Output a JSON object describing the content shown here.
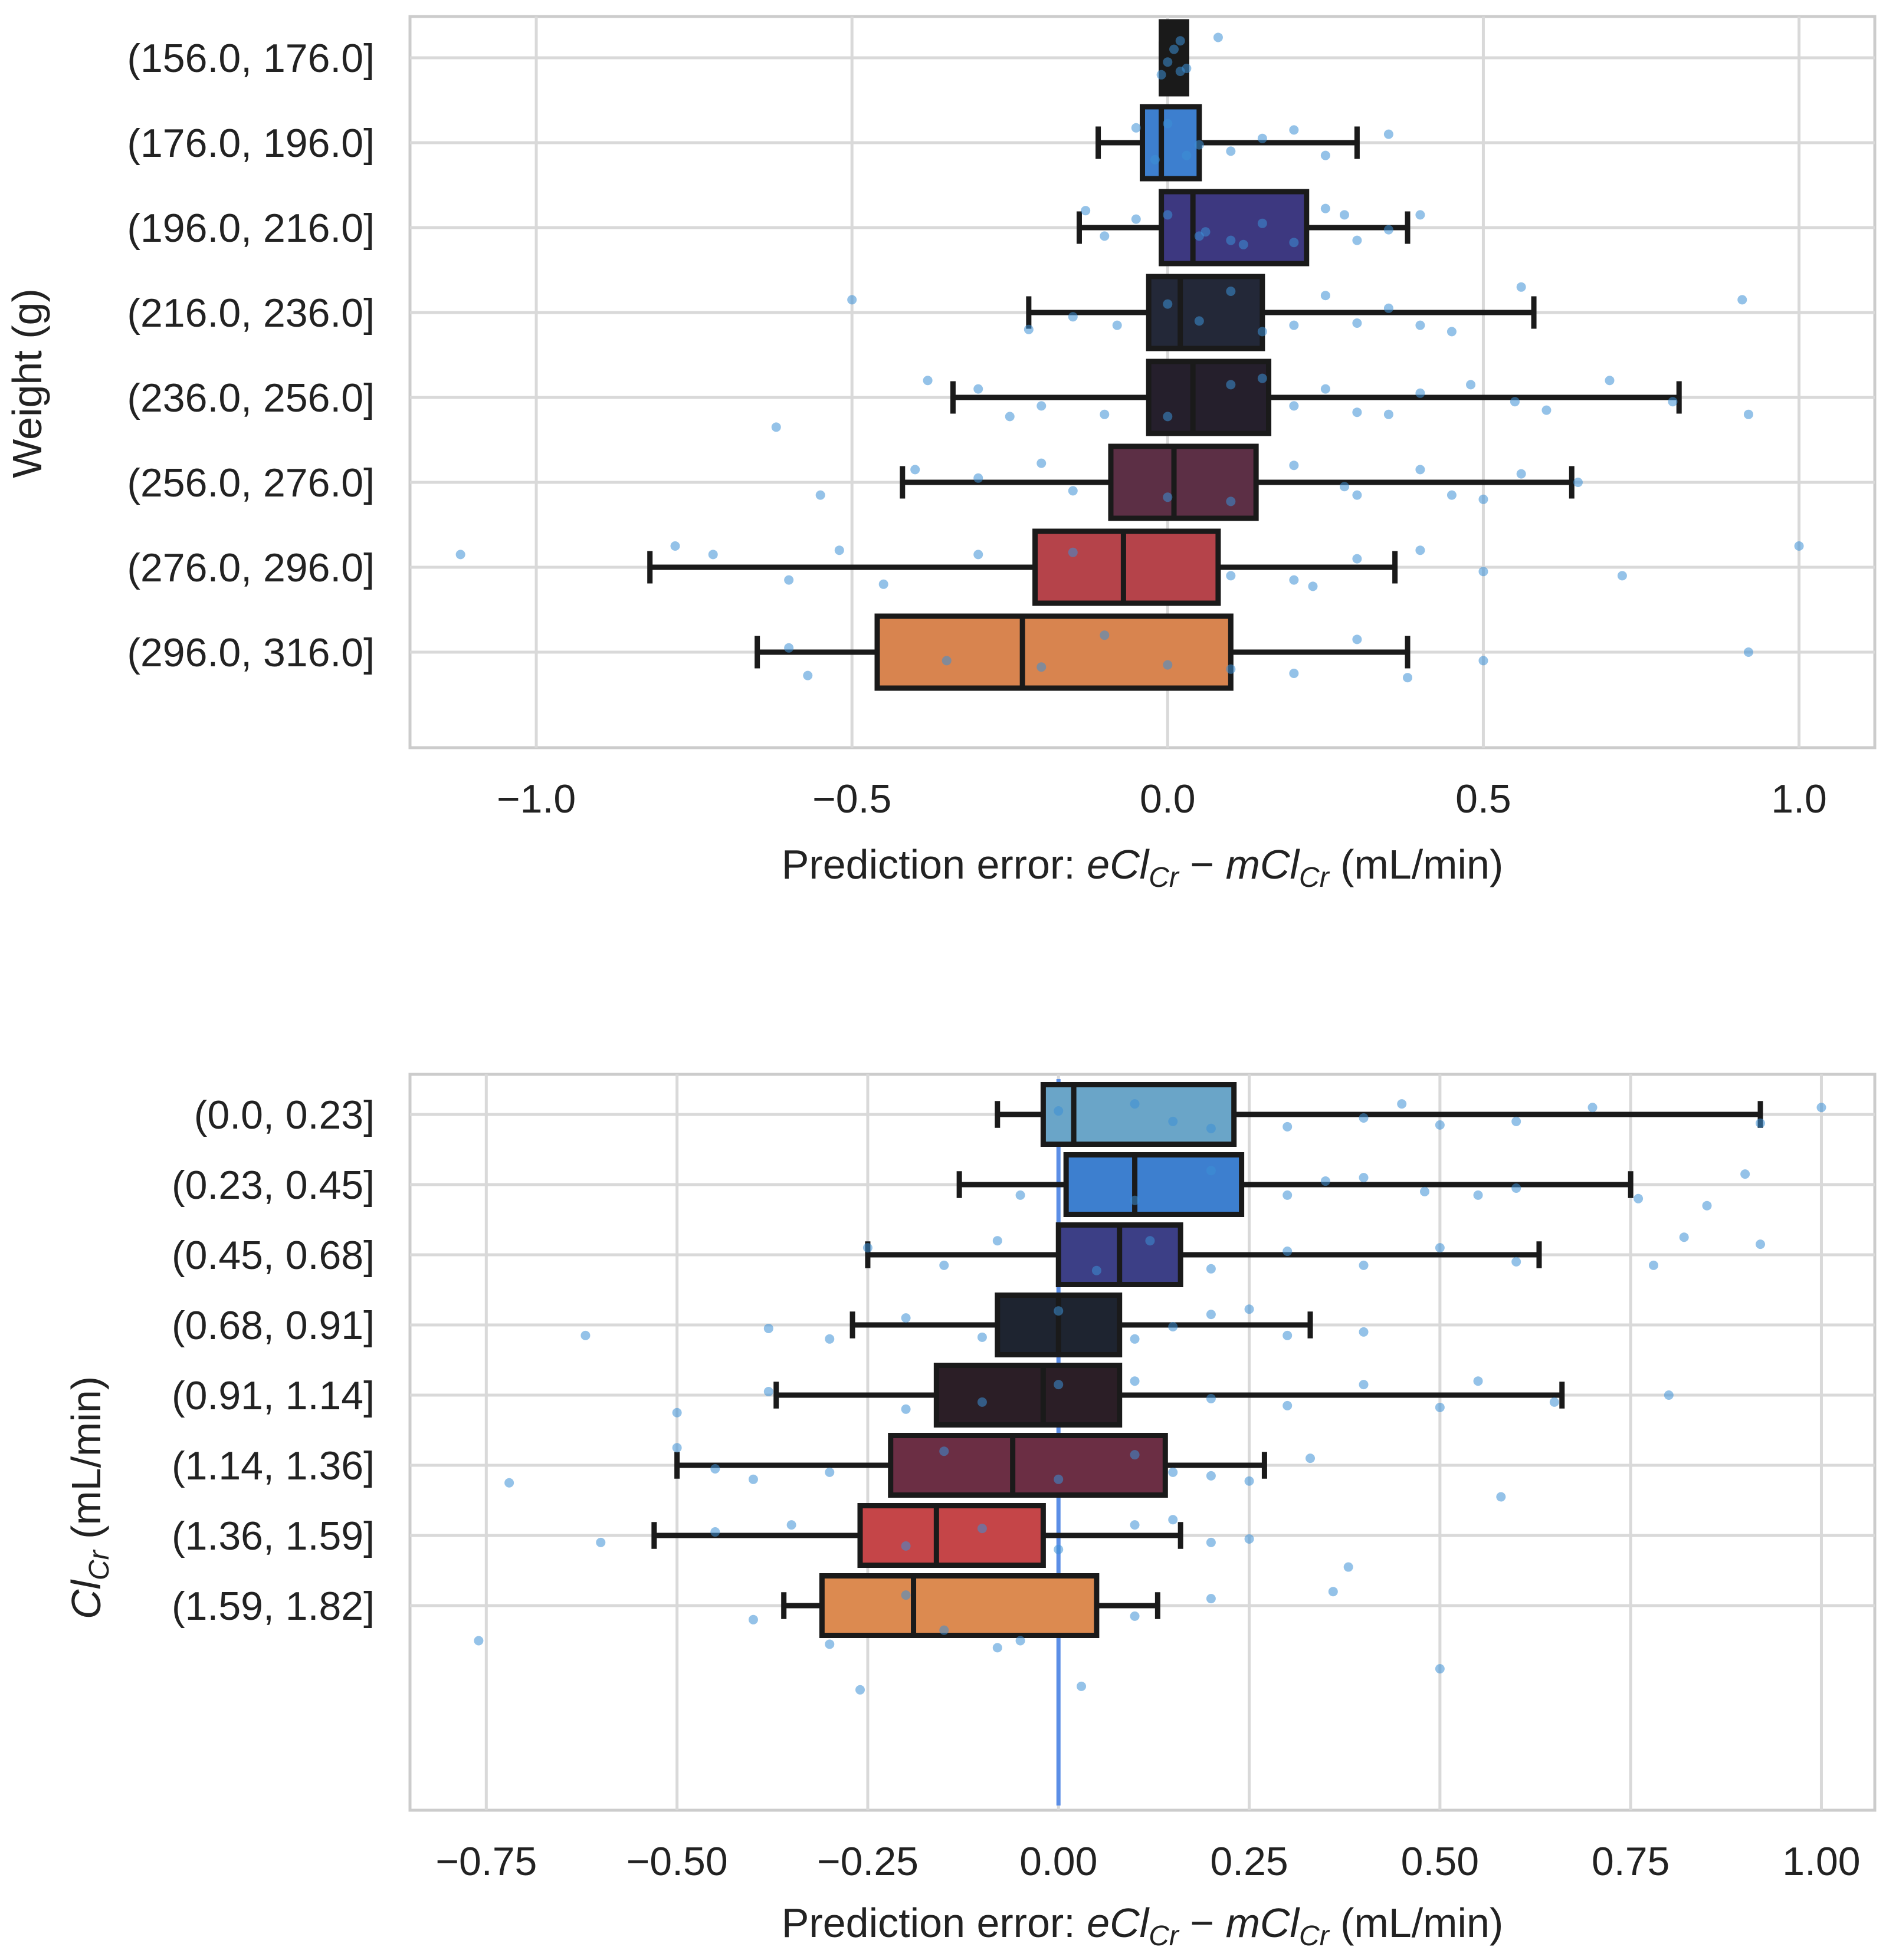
{
  "chart_data": [
    {
      "type": "boxplot",
      "orientation": "horizontal",
      "ylabel": "Weight (g)",
      "xlabel": {
        "prefix": "Prediction error: ",
        "term1": "eCl",
        "sub1": "Cr",
        "operator": " − ",
        "term2": "mCl",
        "sub2": "Cr",
        "suffix": " (mL/min)"
      },
      "xlim": [
        -1.2,
        1.12
      ],
      "xticks": [
        -1.0,
        -0.5,
        0.0,
        0.5,
        1.0
      ],
      "xtick_labels": [
        "−1.0",
        "−0.5",
        "0.0",
        "0.5",
        "1.0"
      ],
      "grid": true,
      "zero_line": false,
      "categories": [
        "(156.0, 176.0]",
        "(176.0, 196.0]",
        "(196.0, 216.0]",
        "(216.0, 236.0]",
        "(236.0, 256.0]",
        "(256.0, 276.0]",
        "(276.0, 296.0]",
        "(296.0, 316.0]"
      ],
      "colors": [
        "#1a1a1a",
        "#3d7fcf",
        "#3d3880",
        "#232838",
        "#251f2c",
        "#5c2f45",
        "#b5434a",
        "#d8844f"
      ],
      "boxes": [
        {
          "whislo": -0.01,
          "q1": -0.01,
          "med": 0.01,
          "q3": 0.03,
          "whishi": 0.03
        },
        {
          "whislo": -0.11,
          "q1": -0.04,
          "med": -0.01,
          "q3": 0.05,
          "whishi": 0.3
        },
        {
          "whislo": -0.14,
          "q1": -0.01,
          "med": 0.04,
          "q3": 0.22,
          "whishi": 0.38
        },
        {
          "whislo": -0.22,
          "q1": -0.03,
          "med": 0.02,
          "q3": 0.15,
          "whishi": 0.58
        },
        {
          "whislo": -0.34,
          "q1": -0.03,
          "med": 0.04,
          "q3": 0.16,
          "whishi": 0.81
        },
        {
          "whislo": -0.42,
          "q1": -0.09,
          "med": 0.01,
          "q3": 0.14,
          "whishi": 0.64
        },
        {
          "whislo": -0.82,
          "q1": -0.21,
          "med": -0.07,
          "q3": 0.08,
          "whishi": 0.36
        },
        {
          "whislo": -0.65,
          "q1": -0.46,
          "med": -0.23,
          "q3": 0.1,
          "whishi": 0.38
        }
      ],
      "scatter": [
        [
          [
            0.01,
            -0.2
          ],
          [
            0.03,
            0.25
          ],
          [
            -0.01,
            0.4
          ],
          [
            0.02,
            -0.4
          ],
          [
            0.08,
            -0.48
          ],
          [
            0.0,
            0.1
          ],
          [
            0.02,
            0.32
          ]
        ],
        [
          [
            -0.05,
            -0.35
          ],
          [
            0.1,
            0.2
          ],
          [
            0.03,
            0.3
          ],
          [
            0.2,
            -0.3
          ],
          [
            -0.02,
            0.4
          ],
          [
            0.15,
            -0.1
          ],
          [
            0.05,
            0.05
          ],
          [
            0.35,
            -0.2
          ],
          [
            0.0,
            -0.45
          ],
          [
            0.25,
            0.3
          ]
        ],
        [
          [
            -0.13,
            -0.4
          ],
          [
            0.3,
            0.3
          ],
          [
            0.4,
            -0.3
          ],
          [
            0.1,
            0.3
          ],
          [
            -0.05,
            -0.2
          ],
          [
            0.2,
            0.35
          ],
          [
            0.05,
            0.2
          ],
          [
            0.28,
            -0.3
          ],
          [
            0.15,
            -0.1
          ],
          [
            -0.1,
            0.2
          ],
          [
            0.35,
            0.05
          ],
          [
            0.12,
            0.4
          ],
          [
            0.25,
            -0.45
          ],
          [
            0.0,
            -0.3
          ],
          [
            0.06,
            0.1
          ]
        ],
        [
          [
            -0.5,
            -0.3
          ],
          [
            -0.22,
            0.4
          ],
          [
            0.2,
            0.3
          ],
          [
            0.56,
            -0.6
          ],
          [
            0.91,
            -0.3
          ],
          [
            0.4,
            0.3
          ],
          [
            0.1,
            -0.5
          ],
          [
            -0.15,
            0.1
          ],
          [
            0.3,
            0.25
          ],
          [
            0.0,
            -0.2
          ],
          [
            0.25,
            -0.4
          ],
          [
            0.45,
            0.45
          ],
          [
            -0.08,
            0.3
          ],
          [
            0.15,
            0.45
          ],
          [
            0.35,
            -0.1
          ],
          [
            0.05,
            0.2
          ]
        ],
        [
          [
            -0.62,
            0.7
          ],
          [
            -0.38,
            -0.4
          ],
          [
            0.92,
            0.4
          ],
          [
            0.48,
            -0.3
          ],
          [
            0.7,
            -0.4
          ],
          [
            0.8,
            0.1
          ],
          [
            0.3,
            0.35
          ],
          [
            0.6,
            0.3
          ],
          [
            -0.2,
            0.2
          ],
          [
            0.1,
            -0.3
          ],
          [
            -0.3,
            -0.2
          ],
          [
            0.2,
            0.2
          ],
          [
            0.4,
            -0.1
          ],
          [
            -0.1,
            0.4
          ],
          [
            0.15,
            -0.45
          ],
          [
            0.55,
            0.1
          ],
          [
            0.25,
            -0.2
          ],
          [
            0.0,
            0.45
          ],
          [
            0.35,
            0.4
          ],
          [
            -0.25,
            0.45
          ]
        ],
        [
          [
            -0.55,
            0.3
          ],
          [
            -0.4,
            -0.3
          ],
          [
            0.5,
            0.4
          ],
          [
            0.56,
            -0.2
          ],
          [
            0.3,
            0.3
          ],
          [
            -0.15,
            0.2
          ],
          [
            0.2,
            -0.4
          ],
          [
            0.65,
            0.0
          ],
          [
            0.4,
            -0.3
          ],
          [
            -0.3,
            -0.1
          ],
          [
            0.1,
            0.45
          ],
          [
            0.28,
            0.1
          ],
          [
            -0.2,
            -0.45
          ],
          [
            0.0,
            0.35
          ],
          [
            0.45,
            0.3
          ]
        ],
        [
          [
            -1.12,
            -0.3
          ],
          [
            -0.78,
            -0.5
          ],
          [
            -0.72,
            -0.3
          ],
          [
            -0.52,
            -0.4
          ],
          [
            -0.6,
            0.3
          ],
          [
            1.0,
            -0.5
          ],
          [
            0.72,
            0.2
          ],
          [
            0.5,
            0.1
          ],
          [
            -0.3,
            -0.3
          ],
          [
            0.2,
            0.3
          ],
          [
            -0.45,
            0.4
          ],
          [
            0.3,
            -0.2
          ],
          [
            0.1,
            0.2
          ],
          [
            -0.15,
            -0.35
          ],
          [
            0.4,
            -0.4
          ],
          [
            0.23,
            0.45
          ]
        ],
        [
          [
            -0.57,
            0.55
          ],
          [
            0.38,
            0.6
          ],
          [
            0.92,
            0.0
          ],
          [
            0.2,
            0.5
          ],
          [
            -0.6,
            -0.1
          ],
          [
            0.5,
            0.2
          ],
          [
            -0.35,
            0.2
          ],
          [
            0.3,
            -0.3
          ],
          [
            0.0,
            0.3
          ],
          [
            -0.1,
            -0.4
          ],
          [
            0.1,
            0.4
          ],
          [
            -0.2,
            0.35
          ]
        ]
      ]
    },
    {
      "type": "boxplot",
      "orientation": "horizontal",
      "ylabel": {
        "term": "Cl",
        "sub": "Cr",
        "suffix": " (mL/min)"
      },
      "xlabel": {
        "prefix": "Prediction error: ",
        "term1": "eCl",
        "sub1": "Cr",
        "operator": " − ",
        "term2": "mCl",
        "sub2": "Cr",
        "suffix": " (mL/min)"
      },
      "xlim": [
        -0.85,
        1.07
      ],
      "xticks": [
        -0.75,
        -0.5,
        -0.25,
        0.0,
        0.25,
        0.5,
        0.75,
        1.0
      ],
      "xtick_labels": [
        "−0.75",
        "−0.50",
        "−0.25",
        "0.00",
        "0.25",
        "0.50",
        "0.75",
        "1.00"
      ],
      "grid": true,
      "zero_line": true,
      "zero_line_color": "#5b8ee6",
      "categories": [
        "(0.0, 0.23]",
        "(0.23, 0.45]",
        "(0.45, 0.68]",
        "(0.68, 0.91]",
        "(0.91, 1.14]",
        "(1.14, 1.36]",
        "(1.36, 1.59]",
        "(1.59, 1.82]"
      ],
      "colors": [
        "#6aa5c8",
        "#3d7fcf",
        "#3c3f86",
        "#1e2430",
        "#2b1e26",
        "#6b2e44",
        "#c54548",
        "#dc8a50"
      ],
      "boxes": [
        {
          "whislo": -0.08,
          "q1": -0.02,
          "med": 0.02,
          "q3": 0.23,
          "whishi": 0.92
        },
        {
          "whislo": -0.13,
          "q1": 0.01,
          "med": 0.1,
          "q3": 0.24,
          "whishi": 0.75
        },
        {
          "whislo": -0.25,
          "q1": 0.0,
          "med": 0.08,
          "q3": 0.16,
          "whishi": 0.63
        },
        {
          "whislo": -0.27,
          "q1": -0.08,
          "med": 0.0,
          "q3": 0.08,
          "whishi": 0.33
        },
        {
          "whislo": -0.37,
          "q1": -0.16,
          "med": -0.02,
          "q3": 0.08,
          "whishi": 0.66
        },
        {
          "whislo": -0.5,
          "q1": -0.22,
          "med": -0.06,
          "q3": 0.14,
          "whishi": 0.27
        },
        {
          "whislo": -0.53,
          "q1": -0.26,
          "med": -0.16,
          "q3": -0.02,
          "whishi": 0.16
        },
        {
          "whislo": -0.36,
          "q1": -0.31,
          "med": -0.19,
          "q3": 0.05,
          "whishi": 0.13
        }
      ],
      "scatter": [
        [
          [
            1.0,
            -0.2
          ],
          [
            0.92,
            0.25
          ],
          [
            0.45,
            -0.3
          ],
          [
            0.6,
            0.2
          ],
          [
            0.3,
            0.35
          ],
          [
            0.1,
            -0.3
          ],
          [
            0.4,
            0.1
          ],
          [
            0.2,
            0.4
          ],
          [
            0.0,
            -0.1
          ],
          [
            0.5,
            0.3
          ],
          [
            0.7,
            -0.2
          ],
          [
            0.15,
            0.2
          ]
        ],
        [
          [
            0.9,
            -0.3
          ],
          [
            0.76,
            0.4
          ],
          [
            0.85,
            0.6
          ],
          [
            0.55,
            0.3
          ],
          [
            0.4,
            -0.2
          ],
          [
            0.3,
            0.3
          ],
          [
            0.6,
            0.1
          ],
          [
            0.2,
            -0.4
          ],
          [
            -0.05,
            0.3
          ],
          [
            0.1,
            0.45
          ],
          [
            0.35,
            -0.1
          ],
          [
            0.48,
            0.2
          ]
        ],
        [
          [
            -0.25,
            -0.2
          ],
          [
            0.92,
            -0.3
          ],
          [
            0.82,
            -0.5
          ],
          [
            0.78,
            0.3
          ],
          [
            0.6,
            0.2
          ],
          [
            0.4,
            0.3
          ],
          [
            0.3,
            -0.1
          ],
          [
            0.2,
            0.4
          ],
          [
            -0.15,
            0.3
          ],
          [
            0.5,
            -0.2
          ],
          [
            0.05,
            0.45
          ],
          [
            0.12,
            -0.4
          ],
          [
            -0.08,
            -0.4
          ]
        ],
        [
          [
            -0.62,
            0.3
          ],
          [
            -0.38,
            0.1
          ],
          [
            0.4,
            0.2
          ],
          [
            0.2,
            -0.3
          ],
          [
            0.3,
            0.3
          ],
          [
            -0.2,
            -0.2
          ],
          [
            0.1,
            0.4
          ],
          [
            0.0,
            -0.4
          ],
          [
            -0.1,
            0.35
          ],
          [
            0.15,
            0.05
          ],
          [
            -0.3,
            0.4
          ],
          [
            0.25,
            -0.45
          ]
        ],
        [
          [
            -0.38,
            -0.1
          ],
          [
            0.8,
            0.0
          ],
          [
            0.65,
            0.2
          ],
          [
            0.4,
            -0.3
          ],
          [
            0.3,
            0.3
          ],
          [
            -0.5,
            0.5
          ],
          [
            0.1,
            -0.4
          ],
          [
            -0.2,
            0.4
          ],
          [
            0.2,
            0.1
          ],
          [
            0.0,
            -0.3
          ],
          [
            -0.1,
            0.2
          ],
          [
            0.5,
            0.35
          ],
          [
            0.55,
            -0.4
          ]
        ],
        [
          [
            -0.72,
            0.5
          ],
          [
            -0.5,
            -0.5
          ],
          [
            0.58,
            0.9
          ],
          [
            0.33,
            -0.2
          ],
          [
            0.2,
            0.3
          ],
          [
            -0.3,
            0.2
          ],
          [
            0.1,
            -0.3
          ],
          [
            -0.45,
            0.1
          ],
          [
            0.0,
            0.4
          ],
          [
            -0.15,
            -0.4
          ],
          [
            0.25,
            0.45
          ],
          [
            0.15,
            0.2
          ],
          [
            -0.4,
            0.4
          ]
        ],
        [
          [
            -0.6,
            0.2
          ],
          [
            -0.35,
            -0.3
          ],
          [
            0.38,
            0.9
          ],
          [
            0.36,
            1.6
          ],
          [
            0.2,
            0.2
          ],
          [
            -0.2,
            0.3
          ],
          [
            0.1,
            -0.3
          ],
          [
            0.0,
            0.4
          ],
          [
            -0.45,
            -0.1
          ],
          [
            0.15,
            -0.45
          ],
          [
            -0.1,
            -0.2
          ],
          [
            0.25,
            0.1
          ]
        ],
        [
          [
            -0.76,
            1.0
          ],
          [
            -0.3,
            1.1
          ],
          [
            -0.26,
            2.4
          ],
          [
            0.03,
            2.3
          ],
          [
            0.5,
            1.8
          ],
          [
            -0.08,
            1.2
          ],
          [
            0.1,
            0.3
          ],
          [
            -0.2,
            -0.3
          ],
          [
            -0.4,
            0.4
          ],
          [
            -0.15,
            0.7
          ],
          [
            -0.05,
            1.0
          ],
          [
            0.2,
            -0.2
          ]
        ]
      ]
    }
  ]
}
